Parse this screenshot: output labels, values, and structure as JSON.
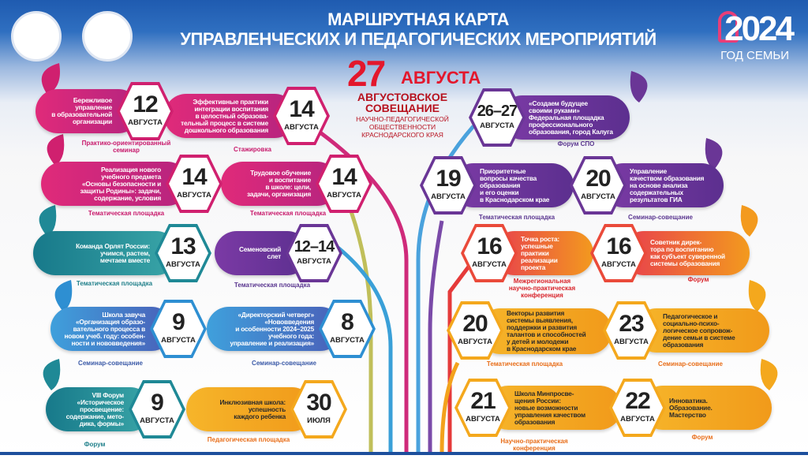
{
  "header": {
    "title_line1": "МАРШРУТНАЯ КАРТА",
    "title_line2": "УПРАВЛЕНЧЕСКИХ И ПЕДАГОГИЧЕСКИХ МЕРОПРИЯТИЙ",
    "year": "2024",
    "year_caption": "ГОД СЕМЬИ"
  },
  "center": {
    "day": "27",
    "month": "АВГУСТА",
    "title": "АВГУСТОВСКОЕ СОВЕЩАНИЕ",
    "subtitle": "НАУЧНО-ПЕДАГОГИЧЕСКОЙ ОБЩЕСТВЕННОСТИ КРАСНОДАРСКОГО КРАЯ"
  },
  "colors": {
    "pink": "#d0206f",
    "purple": "#6a3696",
    "teal": "#1f8996",
    "blue": "#2e8fd2",
    "yellow": "#f4a81d",
    "orange": "#ea4a3a"
  },
  "events": [
    {
      "day": "12",
      "month": "АВГУСТА",
      "text": "Бережливое\nуправление\nв образовательной\nорганизации",
      "type": "Практико-ориентированный\nсеминар",
      "color": "pink"
    },
    {
      "day": "14",
      "month": "АВГУСТА",
      "text": "Эффективные практики\nинтеграции воспитания\nв целостный образова-\nтельный процесс в системе\nдошкольного образования",
      "type": "Стажировка",
      "color": "pink"
    },
    {
      "day": "14",
      "month": "АВГУСТА",
      "text": "Реализация нового\nучебного предмета\n«Основы безопасности и\nзащиты Родины»: задачи,\nсодержание, условия",
      "type": "Тематическая площадка",
      "color": "pink"
    },
    {
      "day": "14",
      "month": "АВГУСТА",
      "text": "Трудовое обучение\nи воспитание\nв школе: цели,\nзадачи, организация",
      "type": "Тематическая площадка",
      "color": "pink"
    },
    {
      "day": "13",
      "month": "АВГУСТА",
      "text": "Команда Орлят России:\nучимся, растем,\nмечтаем вместе",
      "type": "Тематическая площадка",
      "color": "teal"
    },
    {
      "day": "12–14",
      "month": "АВГУСТА",
      "text": "Семеновский\nслет",
      "type": "Тематическая площадка",
      "color": "purple"
    },
    {
      "day": "9",
      "month": "АВГУСТА",
      "text": "Школа завуча\n«Организация образо-\nвательного процесса в\nновом учеб. году: особен-\nности и нововведения»",
      "type": "Семинар-совещание",
      "color": "blue"
    },
    {
      "day": "8",
      "month": "АВГУСТА",
      "text": "«Директорский четверг»\n«Нововведения\nи особенности 2024–2025\nучебного года:\nуправление и реализация»",
      "type": "Семинар-совещание",
      "color": "blue"
    },
    {
      "day": "9",
      "month": "АВГУСТА",
      "text": "VIII Форум\n«Историческое\nпросвещение:\nсодержание, мето-\nдика, формы»",
      "type": "Форум",
      "color": "teal"
    },
    {
      "day": "30",
      "month": "ИЮЛЯ",
      "text": "Инклюзивная школа:\nуспешность\nкаждого ребенка",
      "type": "Педагогическая площадка",
      "color": "yellow"
    },
    {
      "day": "26–27",
      "month": "АВГУСТА",
      "text": "«Создаем будущее\nсвоими руками»\nФедеральная площадка\nпрофессионального\nобразования, город Калуга",
      "type": "Форум СПО",
      "color": "purple"
    },
    {
      "day": "19",
      "month": "АВГУСТА",
      "text": "Приоритетные\nвопросы качества\nобразования\nи его оценки\nв Краснодарском крае",
      "type": "Тематическая площадка",
      "color": "purple"
    },
    {
      "day": "20",
      "month": "АВГУСТА",
      "text": "Управление\nкачеством образования\nна основе анализа\nсодержательных\nрезультатов ГИА",
      "type": "Семинар-совещание",
      "color": "purple"
    },
    {
      "day": "16",
      "month": "АВГУСТА",
      "text": "Точка роста:\nуспешные\nпрактики\nреализации\nпроекта",
      "type": "Межрегиональная\nнаучно-практическая\nконференция",
      "color": "orange"
    },
    {
      "day": "16",
      "month": "АВГУСТА",
      "text": "Советник дирек-\nтора по воспитанию\nкак субъект суверенной\nсистемы образования",
      "type": "Форум",
      "color": "orange"
    },
    {
      "day": "20",
      "month": "АВГУСТА",
      "text": "Векторы развития\nсистемы выявления,\nподдержки и развития\nталантов и способностей\nу детей и молодежи\nв Краснодарском крае",
      "type": "Тематическая площадка",
      "color": "yellow"
    },
    {
      "day": "23",
      "month": "АВГУСТА",
      "text": "Педагогическое и\nсоциально-психо-\nлогическое сопровож-\nдение семьи в системе\nобразования",
      "type": "Семинар-совещание",
      "color": "yellow"
    },
    {
      "day": "21",
      "month": "АВГУСТА",
      "text": "Школа Минпросве-\nщения России:\nновые возможности\nуправления качеством\nобразования",
      "type": "Научно-практическая\nконференция",
      "color": "yellow"
    },
    {
      "day": "22",
      "month": "АВГУСТА",
      "text": "Инноватика.\nОбразование.\nМастерство",
      "type": "Форум",
      "color": "yellow"
    }
  ]
}
